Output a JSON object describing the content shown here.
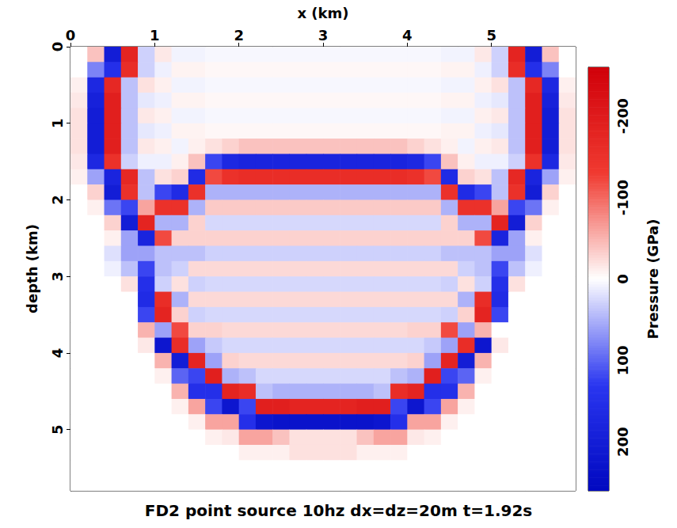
{
  "chart_data": {
    "type": "heatmap",
    "title": "FD2 point source 10hz dx=dz=20m t=1.92s",
    "x_label": "x (km)",
    "y_label": "depth (km)",
    "xlim": [
      0,
      6
    ],
    "ylim": [
      0,
      5.8
    ],
    "xticks": [
      0,
      1,
      2,
      3,
      4,
      5
    ],
    "yticks": [
      0,
      1,
      2,
      3,
      4,
      5
    ],
    "x": [
      0.1,
      0.3,
      0.5,
      0.7,
      0.9,
      1.1,
      1.3,
      1.5,
      1.7,
      1.9,
      2.1,
      2.3,
      2.5,
      2.7,
      2.9,
      3.1,
      3.3,
      3.5,
      3.7,
      3.9,
      4.1,
      4.3,
      4.5,
      4.7,
      4.9,
      5.1,
      5.3,
      5.5,
      5.7,
      5.9
    ],
    "y": [
      0.1,
      0.3,
      0.5,
      0.7,
      0.9,
      1.1,
      1.3,
      1.5,
      1.7,
      1.9,
      2.1,
      2.3,
      2.5,
      2.7,
      2.9,
      3.1,
      3.3,
      3.5,
      3.7,
      3.9,
      4.1,
      4.3,
      4.5,
      4.7,
      4.9,
      5.1,
      5.3,
      5.5,
      5.7
    ],
    "values": [
      [
        0,
        -40,
        200,
        -180,
        30,
        -15,
        8,
        8,
        5,
        5,
        5,
        5,
        5,
        5,
        5,
        5,
        5,
        5,
        5,
        5,
        5,
        5,
        8,
        8,
        -15,
        30,
        -180,
        200,
        -40,
        0
      ],
      [
        0,
        80,
        150,
        -160,
        30,
        10,
        -8,
        -8,
        -5,
        -5,
        -5,
        -5,
        -5,
        -5,
        -5,
        -5,
        -5,
        -5,
        -5,
        -5,
        -5,
        -5,
        -8,
        -8,
        10,
        30,
        -160,
        150,
        80,
        0
      ],
      [
        -10,
        170,
        -170,
        40,
        -20,
        -10,
        8,
        8,
        5,
        5,
        5,
        5,
        5,
        5,
        5,
        5,
        5,
        5,
        5,
        5,
        5,
        5,
        8,
        8,
        -10,
        -20,
        40,
        -170,
        170,
        -10
      ],
      [
        -15,
        190,
        -190,
        40,
        15,
        10,
        -8,
        -8,
        -5,
        -5,
        -5,
        -5,
        -5,
        -5,
        -5,
        -5,
        -5,
        -5,
        -5,
        -5,
        -5,
        -5,
        -8,
        -8,
        10,
        15,
        40,
        -190,
        190,
        -15
      ],
      [
        -20,
        200,
        -190,
        40,
        -15,
        -10,
        8,
        8,
        5,
        5,
        5,
        5,
        5,
        5,
        5,
        5,
        5,
        5,
        5,
        5,
        5,
        5,
        8,
        8,
        -10,
        -15,
        40,
        -190,
        200,
        -20
      ],
      [
        -20,
        200,
        -190,
        40,
        15,
        10,
        -8,
        -8,
        -5,
        -5,
        -5,
        -5,
        -5,
        -5,
        -5,
        -5,
        -5,
        -5,
        -5,
        -5,
        -5,
        -5,
        -8,
        -8,
        10,
        15,
        40,
        -190,
        200,
        -20
      ],
      [
        -20,
        200,
        -190,
        40,
        -15,
        -10,
        8,
        -10,
        -20,
        -30,
        -40,
        -40,
        -40,
        -40,
        -40,
        -40,
        -40,
        -40,
        -40,
        -40,
        -30,
        -20,
        -10,
        8,
        -10,
        -15,
        40,
        -190,
        200,
        -20
      ],
      [
        -15,
        170,
        -150,
        30,
        10,
        10,
        -10,
        -40,
        120,
        170,
        180,
        180,
        180,
        180,
        180,
        180,
        180,
        180,
        180,
        180,
        170,
        120,
        -40,
        -10,
        10,
        10,
        30,
        -150,
        170,
        -15
      ],
      [
        -10,
        60,
        180,
        -170,
        40,
        -20,
        -30,
        160,
        -120,
        -150,
        -160,
        -160,
        -160,
        -160,
        -160,
        -160,
        -160,
        -160,
        -160,
        -160,
        -150,
        -120,
        160,
        -30,
        -20,
        40,
        -170,
        180,
        60,
        -10
      ],
      [
        0,
        -30,
        200,
        -150,
        40,
        120,
        160,
        -150,
        50,
        50,
        50,
        50,
        50,
        50,
        50,
        50,
        50,
        50,
        50,
        50,
        50,
        50,
        -150,
        160,
        120,
        40,
        -150,
        200,
        -30,
        0
      ],
      [
        0,
        -10,
        90,
        120,
        -60,
        -150,
        -150,
        50,
        -35,
        -35,
        -35,
        -35,
        -35,
        -35,
        -35,
        -35,
        -35,
        -35,
        -35,
        -35,
        -35,
        -35,
        50,
        -150,
        -150,
        -60,
        120,
        90,
        -10,
        0
      ],
      [
        0,
        0,
        -30,
        200,
        -180,
        50,
        50,
        -30,
        25,
        25,
        25,
        25,
        25,
        25,
        25,
        25,
        25,
        25,
        25,
        25,
        25,
        25,
        -30,
        50,
        50,
        -180,
        200,
        -30,
        0,
        0
      ],
      [
        0,
        0,
        -10,
        60,
        180,
        -120,
        -30,
        -30,
        -30,
        -30,
        -30,
        -30,
        -30,
        -30,
        -30,
        -30,
        -30,
        -30,
        -30,
        -30,
        -30,
        -30,
        -30,
        -30,
        -120,
        180,
        60,
        -10,
        0,
        0
      ],
      [
        0,
        0,
        20,
        60,
        60,
        40,
        40,
        40,
        30,
        30,
        30,
        30,
        30,
        30,
        30,
        30,
        30,
        30,
        30,
        30,
        30,
        30,
        40,
        40,
        40,
        60,
        60,
        20,
        0,
        0
      ],
      [
        0,
        0,
        10,
        40,
        120,
        40,
        30,
        -25,
        -25,
        -25,
        -25,
        -25,
        -25,
        -25,
        -25,
        -25,
        -25,
        -25,
        -25,
        -25,
        -25,
        -25,
        -25,
        30,
        40,
        120,
        40,
        10,
        0,
        0
      ],
      [
        0,
        0,
        0,
        -20,
        150,
        30,
        -20,
        30,
        25,
        25,
        25,
        25,
        25,
        25,
        25,
        25,
        25,
        25,
        25,
        25,
        25,
        25,
        30,
        -20,
        30,
        150,
        -20,
        0,
        0,
        0
      ],
      [
        0,
        0,
        0,
        0,
        160,
        -160,
        50,
        -25,
        -25,
        -25,
        -25,
        -25,
        -25,
        -25,
        -25,
        -25,
        -25,
        -25,
        -25,
        -25,
        -25,
        -25,
        -25,
        50,
        -160,
        160,
        0,
        0,
        0,
        0
      ],
      [
        0,
        0,
        0,
        0,
        120,
        -180,
        -30,
        30,
        25,
        25,
        25,
        25,
        25,
        25,
        25,
        25,
        25,
        25,
        25,
        25,
        25,
        25,
        30,
        -30,
        -180,
        120,
        0,
        0,
        0,
        0
      ],
      [
        0,
        0,
        0,
        0,
        -50,
        60,
        -120,
        -30,
        -30,
        -25,
        -25,
        -25,
        -25,
        -25,
        -25,
        -25,
        -25,
        -25,
        -25,
        -25,
        -30,
        -30,
        -120,
        60,
        -50,
        0,
        0,
        0,
        0,
        0
      ],
      [
        0,
        0,
        0,
        0,
        -15,
        220,
        -160,
        60,
        35,
        25,
        25,
        25,
        25,
        25,
        25,
        25,
        25,
        25,
        25,
        25,
        25,
        35,
        60,
        -160,
        220,
        -15,
        0,
        0,
        0,
        0
      ],
      [
        0,
        0,
        0,
        0,
        0,
        -50,
        200,
        -180,
        60,
        -30,
        -25,
        -25,
        -25,
        -25,
        -25,
        -25,
        -25,
        -25,
        -25,
        -25,
        -30,
        60,
        -180,
        200,
        -50,
        0,
        0,
        0,
        0,
        0
      ],
      [
        0,
        0,
        0,
        0,
        0,
        -10,
        100,
        120,
        -190,
        50,
        40,
        25,
        25,
        25,
        25,
        25,
        25,
        25,
        25,
        40,
        50,
        -190,
        120,
        100,
        -10,
        0,
        0,
        0,
        0,
        0
      ],
      [
        0,
        0,
        0,
        0,
        0,
        0,
        -50,
        150,
        150,
        -180,
        -160,
        40,
        50,
        50,
        50,
        50,
        50,
        50,
        40,
        -160,
        -180,
        150,
        150,
        -50,
        0,
        0,
        0,
        0,
        0,
        0
      ],
      [
        0,
        0,
        0,
        0,
        0,
        0,
        -10,
        -60,
        120,
        220,
        120,
        -190,
        -190,
        -180,
        -180,
        -180,
        -180,
        -190,
        -190,
        120,
        220,
        120,
        -60,
        -10,
        0,
        0,
        0,
        0,
        0,
        0
      ],
      [
        0,
        0,
        0,
        0,
        0,
        0,
        0,
        -10,
        -60,
        -60,
        150,
        220,
        230,
        230,
        230,
        230,
        230,
        230,
        220,
        150,
        -60,
        -60,
        -10,
        0,
        0,
        0,
        0,
        0,
        0,
        0
      ],
      [
        0,
        0,
        0,
        0,
        0,
        0,
        0,
        0,
        -10,
        -15,
        -60,
        -60,
        -40,
        -20,
        -20,
        -20,
        -20,
        -40,
        -60,
        -60,
        -15,
        -10,
        0,
        0,
        0,
        0,
        0,
        0,
        0,
        0
      ],
      [
        0,
        0,
        0,
        0,
        0,
        0,
        0,
        0,
        0,
        0,
        -10,
        -10,
        -10,
        -20,
        -20,
        -20,
        -20,
        -10,
        -10,
        -10,
        0,
        0,
        0,
        0,
        0,
        0,
        0,
        0,
        0,
        0
      ],
      [
        0,
        0,
        0,
        0,
        0,
        0,
        0,
        0,
        0,
        0,
        0,
        0,
        0,
        0,
        0,
        0,
        0,
        0,
        0,
        0,
        0,
        0,
        0,
        0,
        0,
        0,
        0,
        0,
        0,
        0
      ],
      [
        0,
        0,
        0,
        0,
        0,
        0,
        0,
        0,
        0,
        0,
        0,
        0,
        0,
        0,
        0,
        0,
        0,
        0,
        0,
        0,
        0,
        0,
        0,
        0,
        0,
        0,
        0,
        0,
        0,
        0
      ]
    ],
    "colorbar": {
      "label": "Pressure (GPa)",
      "range": [
        -260,
        260
      ],
      "ticks": [
        -200,
        -100,
        0,
        100,
        200
      ]
    }
  }
}
